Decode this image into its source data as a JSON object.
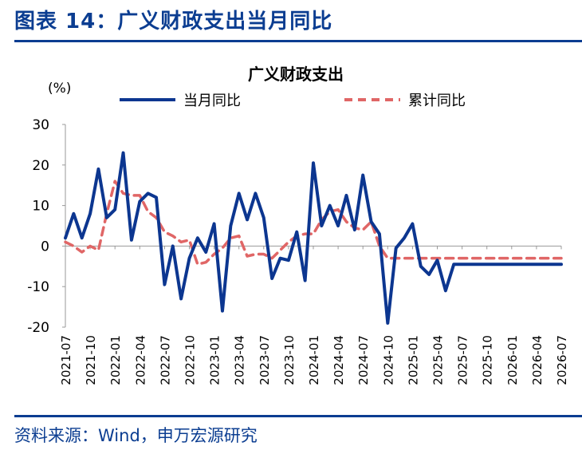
{
  "header": {
    "figure_title": "图表 14：广义财政支出当月同比"
  },
  "footer": {
    "source": "资料来源：Wind，申万宏源研究"
  },
  "colors": {
    "title_blue": "#0b3d91",
    "series1": "#0c3690",
    "series2": "#e06666"
  },
  "chart_data": {
    "type": "line",
    "title": "广义财政支出",
    "ylabel": "(%)",
    "ylim": [
      -20,
      30
    ],
    "yticks": [
      -20,
      -10,
      0,
      10,
      20,
      30
    ],
    "xtick_labels": [
      "2021-07",
      "2021-10",
      "2022-01",
      "2022-04",
      "2022-07",
      "2022-10",
      "2023-01",
      "2023-04",
      "2023-07",
      "2023-10",
      "2024-01",
      "2024-04",
      "2024-07",
      "2024-10",
      "2025-01",
      "2025-04",
      "2025-07",
      "2025-10",
      "2026-01",
      "2026-04",
      "2026-07"
    ],
    "x": [
      "2021-07",
      "2021-08",
      "2021-09",
      "2021-10",
      "2021-11",
      "2021-12",
      "2022-01",
      "2022-02",
      "2022-03",
      "2022-04",
      "2022-05",
      "2022-06",
      "2022-07",
      "2022-08",
      "2022-09",
      "2022-10",
      "2022-11",
      "2022-12",
      "2023-01",
      "2023-02",
      "2023-03",
      "2023-04",
      "2023-05",
      "2023-06",
      "2023-07",
      "2023-08",
      "2023-09",
      "2023-10",
      "2023-11",
      "2023-12",
      "2024-01",
      "2024-02",
      "2024-03",
      "2024-04",
      "2024-05",
      "2024-06",
      "2024-07",
      "2024-08",
      "2024-09",
      "2024-10",
      "2024-11",
      "2024-12",
      "2025-01",
      "2025-02",
      "2025-03",
      "2025-04",
      "2025-05",
      "2025-06",
      "2025-07",
      "2025-08",
      "2025-09",
      "2025-10",
      "2025-11",
      "2025-12",
      "2026-01",
      "2026-02",
      "2026-03",
      "2026-04",
      "2026-05",
      "2026-06",
      "2026-07"
    ],
    "legend_position": "top",
    "grid": false,
    "series": [
      {
        "name": "当月同比",
        "style": "solid",
        "values": [
          2,
          8,
          2,
          8,
          19,
          7,
          9,
          23,
          1.5,
          11,
          13,
          12,
          -9.5,
          0,
          -13,
          -3,
          2,
          -1.5,
          5.5,
          -16,
          5,
          13,
          6.5,
          13,
          7,
          -8,
          -3,
          -3.5,
          3.5,
          -8.5,
          20.5,
          5,
          10,
          5,
          12.5,
          4,
          17.5,
          6,
          3,
          -19,
          -0.5,
          2,
          5.5,
          -5,
          -7,
          -3.5,
          -11,
          -4.5,
          -4.5,
          -4.5,
          -4.5,
          -4.5,
          -4.5,
          -4.5,
          -4.5,
          -4.5,
          -4.5,
          -4.5,
          -4.5,
          -4.5,
          -4.5
        ]
      },
      {
        "name": "累计同比",
        "style": "dashed",
        "values": [
          1,
          0,
          -1.5,
          0,
          -1,
          8,
          16,
          13,
          12.5,
          12.5,
          8.5,
          7,
          3.5,
          2.5,
          1,
          1.5,
          -4.5,
          -4,
          -2,
          -0.5,
          2,
          2.5,
          -2.5,
          -2,
          -2,
          -3,
          -1,
          1,
          2.5,
          3,
          3,
          6.5,
          8.5,
          9,
          6,
          4.5,
          4,
          6,
          0,
          -3,
          -3,
          -3,
          -3,
          -3,
          -3,
          -3,
          -3,
          -3,
          -3,
          -3,
          -3,
          -3,
          -3,
          -3,
          -3,
          -3,
          -3,
          -3,
          -3,
          -3,
          -3
        ]
      }
    ]
  }
}
